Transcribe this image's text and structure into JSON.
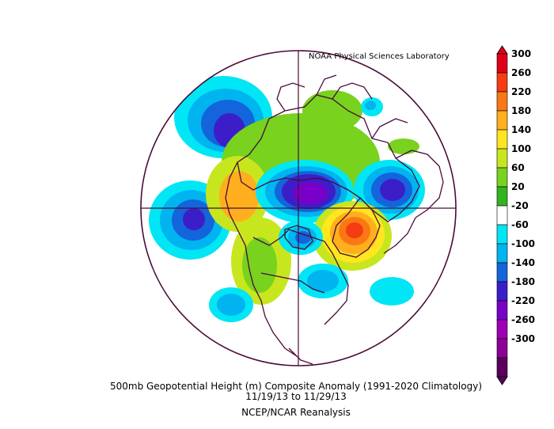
{
  "header": {
    "credit": "NOAA Physical Sciences Laboratory"
  },
  "footer": {
    "title": "500mb Geopotential Height (m) Composite Anomaly (1991-2020 Climatology)",
    "dates": "11/19/13  to 11/29/13",
    "source": "NCEP/NCAR Reanalysis"
  },
  "colorbar": {
    "labels": [
      "300",
      "260",
      "220",
      "180",
      "140",
      "100",
      "60",
      "20",
      "-20",
      "-60",
      "-100",
      "-140",
      "-180",
      "-220",
      "-260",
      "-300"
    ],
    "colors": [
      "#e0001a",
      "#f53c12",
      "#fa7814",
      "#ffaf1e",
      "#ffe61e",
      "#c8e61e",
      "#78d21e",
      "#32b41e",
      "#ffffff",
      "#00e6f5",
      "#00b4f0",
      "#1464dc",
      "#3c1ec8",
      "#7800c8",
      "#a000b4",
      "#8c0096",
      "#5a005a"
    ]
  },
  "map": {
    "projection": "north-polar-stereographic",
    "anomaly_centers": [
      {
        "region": "Greenland / North Atlantic",
        "sign": "negative",
        "approx_value": -180
      },
      {
        "region": "Alaska / Gulf of Alaska",
        "sign": "positive",
        "approx_value": 260
      },
      {
        "region": "Northern Europe / Scandinavia",
        "sign": "negative",
        "approx_value": -140
      },
      {
        "region": "North Pacific (Kamchatka)",
        "sign": "negative",
        "approx_value": -140
      },
      {
        "region": "West Siberia",
        "sign": "negative",
        "approx_value": -140
      },
      {
        "region": "Eastern North Atlantic",
        "sign": "positive",
        "approx_value": 180
      }
    ]
  }
}
